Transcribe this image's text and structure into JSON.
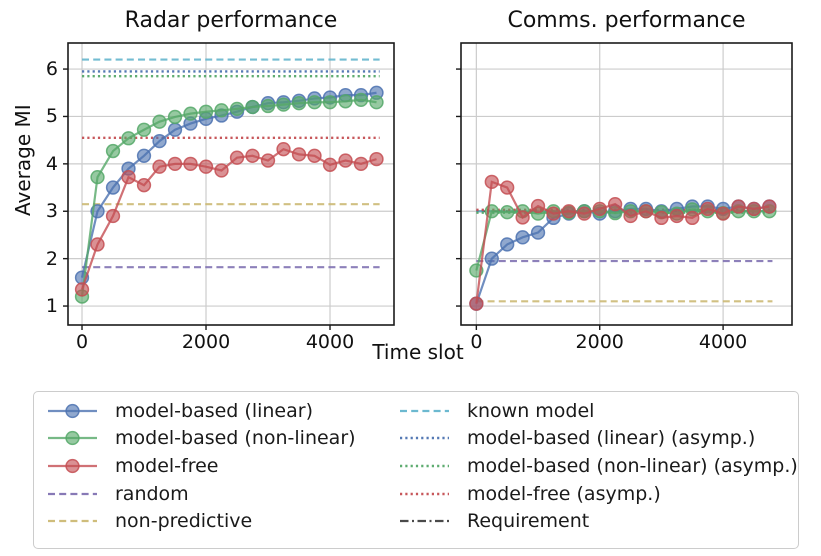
{
  "figure": {
    "background": "#ffffff"
  },
  "palette": {
    "blue": "#4C72B0",
    "green": "#55A868",
    "red": "#C44E52",
    "purple": "#8172B2",
    "tan": "#CCB974",
    "cyan": "#64B5CD",
    "requirement": "#404040",
    "grid": "#cccccc",
    "spine": "#1a1a1a"
  },
  "axes": {
    "ylabel": "Average MI",
    "xlabel": "Time slot",
    "xtick_labels": [
      "0",
      "2000",
      "4000"
    ],
    "ytick_labels": [
      "1",
      "2",
      "3",
      "4",
      "5",
      "6"
    ]
  },
  "chart_data": [
    {
      "type": "line",
      "title": "Radar performance",
      "ylabel": "Average MI",
      "xlabel": "Time slot",
      "xlim": [
        -226,
        5032
      ],
      "ylim": [
        0.6,
        6.55
      ],
      "xticks": [
        0,
        2000,
        4000
      ],
      "yticks": [
        1,
        2,
        3,
        4,
        5,
        6
      ],
      "grid": true,
      "show_ytick_labels": true,
      "x": [
        0,
        250,
        500,
        750,
        1000,
        1250,
        1500,
        1750,
        2000,
        2250,
        2500,
        2750,
        3000,
        3250,
        3500,
        3750,
        4000,
        4250,
        4500,
        4750
      ],
      "series": [
        {
          "name": "model-based (linear)",
          "color": "#4C72B0",
          "values": [
            1.6,
            3.0,
            3.5,
            3.9,
            4.17,
            4.48,
            4.72,
            4.85,
            4.95,
            5.02,
            5.1,
            5.2,
            5.28,
            5.3,
            5.33,
            5.38,
            5.4,
            5.45,
            5.45,
            5.5
          ]
        },
        {
          "name": "model-based (non-linear)",
          "color": "#55A868",
          "values": [
            1.2,
            3.72,
            4.27,
            4.54,
            4.72,
            4.89,
            4.99,
            5.06,
            5.1,
            5.13,
            5.16,
            5.2,
            5.22,
            5.25,
            5.28,
            5.3,
            5.3,
            5.32,
            5.35,
            5.3
          ]
        },
        {
          "name": "model-free",
          "color": "#C44E52",
          "values": [
            1.35,
            2.3,
            2.9,
            3.72,
            3.55,
            3.94,
            4.0,
            4.0,
            3.94,
            3.86,
            4.13,
            4.17,
            4.07,
            4.31,
            4.2,
            4.17,
            3.98,
            4.07,
            4.0,
            4.1
          ]
        }
      ],
      "hlines": [
        {
          "name": "known model",
          "y": 6.2,
          "style": "dashed",
          "color": "#64B5CD",
          "span": [
            0,
            4800
          ]
        },
        {
          "name": "model-based (linear) (asymp.)",
          "y": 5.95,
          "style": "dotted",
          "color": "#4C72B0",
          "span": [
            0,
            4800
          ]
        },
        {
          "name": "model-based (non-linear) (asymp.)",
          "y": 5.85,
          "style": "dotted",
          "color": "#55A868",
          "span": [
            0,
            4800
          ]
        },
        {
          "name": "model-free (asymp.)",
          "y": 4.55,
          "style": "dotted",
          "color": "#C44E52",
          "span": [
            0,
            4800
          ]
        },
        {
          "name": "non-predictive",
          "y": 3.15,
          "style": "dashed",
          "color": "#CCB974",
          "span": [
            0,
            4800
          ]
        },
        {
          "name": "random",
          "y": 1.82,
          "style": "dashed",
          "color": "#8172B2",
          "span": [
            0,
            4800
          ]
        }
      ]
    },
    {
      "type": "line",
      "title": "Comms. performance",
      "xlim": [
        -249,
        5117
      ],
      "ylim": [
        0.6,
        6.55
      ],
      "xticks": [
        0,
        2000,
        4000
      ],
      "yticks": [
        1,
        2,
        3,
        4,
        5,
        6
      ],
      "grid": true,
      "show_ytick_labels": false,
      "x": [
        0,
        250,
        500,
        750,
        1000,
        1250,
        1500,
        1750,
        2000,
        2250,
        2500,
        2750,
        3000,
        3250,
        3500,
        3750,
        4000,
        4250,
        4500,
        4750
      ],
      "series": [
        {
          "name": "model-based (linear)",
          "color": "#4C72B0",
          "values": [
            1.05,
            2.0,
            2.3,
            2.45,
            2.55,
            2.86,
            2.95,
            3.0,
            2.95,
            3.0,
            3.05,
            3.05,
            3.0,
            3.05,
            3.1,
            3.1,
            3.05,
            3.1,
            3.05,
            3.1
          ]
        },
        {
          "name": "model-based (non-linear)",
          "color": "#55A868",
          "values": [
            1.75,
            3.0,
            2.98,
            3.0,
            2.95,
            3.0,
            2.97,
            3.0,
            3.0,
            2.96,
            3.0,
            3.0,
            2.98,
            2.95,
            3.04,
            3.0,
            2.96,
            3.0,
            3.0,
            3.0
          ]
        },
        {
          "name": "model-free",
          "color": "#C44E52",
          "values": [
            1.05,
            3.62,
            3.5,
            2.87,
            3.11,
            2.95,
            3.0,
            2.95,
            3.05,
            3.15,
            2.9,
            3.0,
            2.86,
            2.9,
            2.86,
            3.05,
            2.95,
            3.1,
            3.05,
            3.1
          ]
        }
      ],
      "hlines": [
        {
          "name": "Requirement",
          "y": 3.0,
          "style": "dashdot",
          "color": "#404040",
          "span": [
            0,
            4800
          ]
        },
        {
          "name": "known model",
          "y": 3.0,
          "style": "dashed",
          "color": "#64B5CD",
          "span": [
            0,
            4800
          ]
        },
        {
          "name": "model-based (linear) (asymp.)",
          "y": 3.01,
          "style": "dotted",
          "color": "#4C72B0",
          "span": [
            0,
            4800
          ]
        },
        {
          "name": "model-based (non-linear) (asymp.)",
          "y": 2.97,
          "style": "dotted",
          "color": "#55A868",
          "span": [
            0,
            4800
          ]
        },
        {
          "name": "model-free (asymp.)",
          "y": 3.03,
          "style": "dotted",
          "color": "#C44E52",
          "span": [
            0,
            4800
          ]
        },
        {
          "name": "random",
          "y": 1.95,
          "style": "dashed",
          "color": "#8172B2",
          "span": [
            0,
            4800
          ]
        },
        {
          "name": "non-predictive",
          "y": 1.1,
          "style": "dashed",
          "color": "#CCB974",
          "span": [
            0,
            4800
          ]
        }
      ]
    }
  ],
  "legend": {
    "entries": [
      {
        "label": "model-based (linear)",
        "color": "#4C72B0",
        "line": "solid",
        "marker": true
      },
      {
        "label": "model-based (non-linear)",
        "color": "#55A868",
        "line": "solid",
        "marker": true
      },
      {
        "label": "model-free",
        "color": "#C44E52",
        "line": "solid",
        "marker": true
      },
      {
        "label": "random",
        "color": "#8172B2",
        "line": "dashed",
        "marker": false
      },
      {
        "label": "non-predictive",
        "color": "#CCB974",
        "line": "dashed",
        "marker": false
      },
      {
        "label": "known model",
        "color": "#64B5CD",
        "line": "dashed",
        "marker": false
      },
      {
        "label": "model-based (linear) (asymp.)",
        "color": "#4C72B0",
        "line": "dotted",
        "marker": false
      },
      {
        "label": "model-based (non-linear) (asymp.)",
        "color": "#55A868",
        "line": "dotted",
        "marker": false
      },
      {
        "label": "model-free (asymp.)",
        "color": "#C44E52",
        "line": "dotted",
        "marker": false
      },
      {
        "label": "Requirement",
        "color": "#404040",
        "line": "dashdot",
        "marker": false
      }
    ]
  }
}
